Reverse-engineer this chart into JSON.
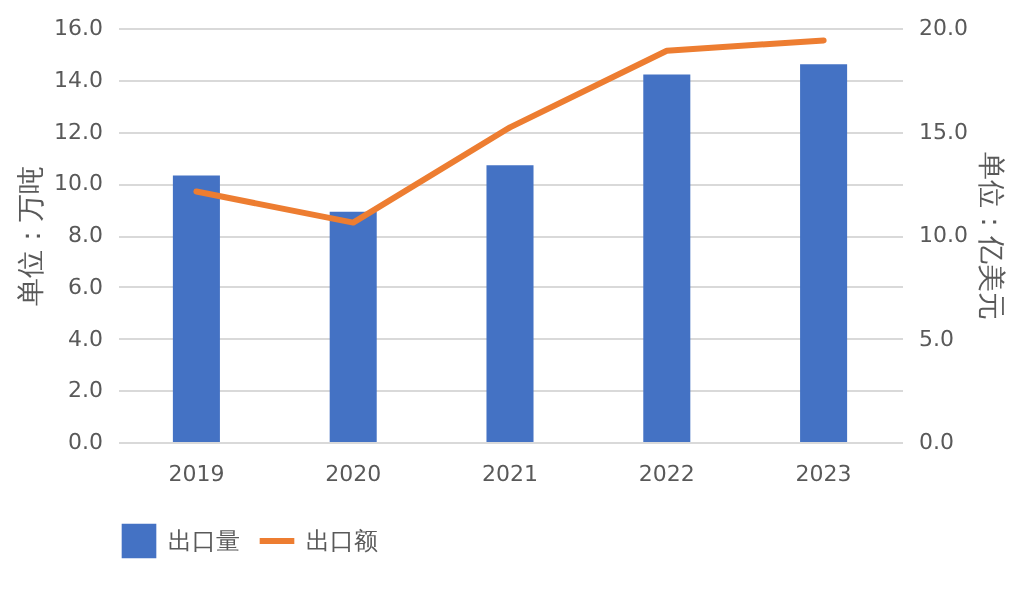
{
  "chart_data": {
    "type": "bar",
    "categories": [
      "2019",
      "2020",
      "2021",
      "2022",
      "2023"
    ],
    "series": [
      {
        "name": "出口量",
        "color": "#4472c4",
        "values": [
          10.3,
          8.9,
          10.7,
          14.2,
          14.6
        ]
      },
      {
        "name": "出口额",
        "type": "line",
        "axis": "y2",
        "color": "#ed7d31",
        "values": [
          12.1,
          10.6,
          15.2,
          18.9,
          19.4
        ]
      }
    ],
    "ylabel": "单位：万吨",
    "y2label": "单位：亿美元",
    "ylim": [
      0,
      16
    ],
    "yticks": [
      {
        "value": 0,
        "label": "0.0"
      },
      {
        "value": 2,
        "label": "2.0"
      },
      {
        "value": 4,
        "label": "4.0"
      },
      {
        "value": 6,
        "label": "6.0"
      },
      {
        "value": 8,
        "label": "8.0"
      },
      {
        "value": 10,
        "label": "10.0"
      },
      {
        "value": 12,
        "label": "12.0"
      },
      {
        "value": 14,
        "label": "14.0"
      },
      {
        "value": 16,
        "label": "16.0"
      }
    ],
    "y2lim": [
      0,
      20
    ],
    "y2ticks": [
      {
        "value": 0,
        "label": "0.0"
      },
      {
        "value": 5,
        "label": "5.0"
      },
      {
        "value": 10,
        "label": "10.0"
      },
      {
        "value": 15,
        "label": "15.0"
      },
      {
        "value": 20,
        "label": "20.0"
      }
    ],
    "grid": "y",
    "legend": "bottom",
    "marker": "none",
    "line_style": "solid"
  }
}
